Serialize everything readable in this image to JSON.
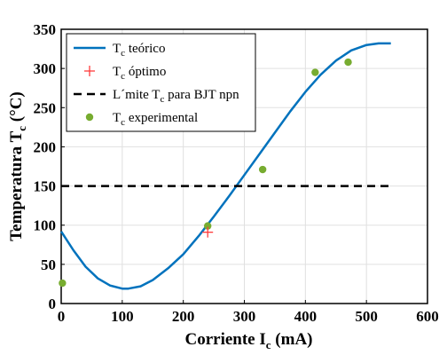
{
  "chart_data": {
    "type": "line",
    "xlabel": {
      "main": "Corriente I",
      "sub": "c",
      "tail": " (mA)"
    },
    "ylabel": {
      "main": "Temperatura T",
      "sub": "c",
      "tail": " (°C)"
    },
    "xlim": [
      0,
      600
    ],
    "ylim": [
      0,
      350
    ],
    "xticks": [
      0,
      100,
      200,
      300,
      400,
      500,
      600
    ],
    "yticks": [
      0,
      50,
      100,
      150,
      200,
      250,
      300,
      350
    ],
    "grid": true,
    "legend_position": "top-left",
    "series": [
      {
        "legend": {
          "pre": "T",
          "sub": "c",
          "post": " teórico"
        },
        "style": "line",
        "color": "#0072BD",
        "x": [
          0,
          20,
          40,
          60,
          80,
          100,
          110,
          130,
          150,
          175,
          200,
          225,
          250,
          275,
          300,
          325,
          350,
          375,
          400,
          425,
          450,
          475,
          500,
          520,
          540
        ],
        "y": [
          92,
          68,
          47,
          32,
          23,
          19,
          19,
          22,
          30,
          45,
          63,
          86,
          111,
          137,
          164,
          191,
          218,
          245,
          270,
          292,
          310,
          323,
          330,
          332,
          332
        ]
      },
      {
        "legend": {
          "pre": "T",
          "sub": "c",
          "post": " óptimo"
        },
        "style": "marker-plus",
        "color": "#FF3B3B",
        "x": [
          240
        ],
        "y": [
          91
        ]
      },
      {
        "legend": {
          "pre": "L´mite T",
          "sub": "c",
          "post": " para BJT npn"
        },
        "style": "dashed",
        "color": "#000000",
        "x": [
          0,
          540
        ],
        "y": [
          150,
          150
        ]
      },
      {
        "legend": {
          "pre": "T",
          "sub": "c",
          "post": " experimental"
        },
        "style": "marker-dot",
        "color": "#77AC30",
        "x": [
          2,
          240,
          330,
          416,
          470
        ],
        "y": [
          26,
          99,
          171,
          295,
          308
        ]
      }
    ]
  }
}
